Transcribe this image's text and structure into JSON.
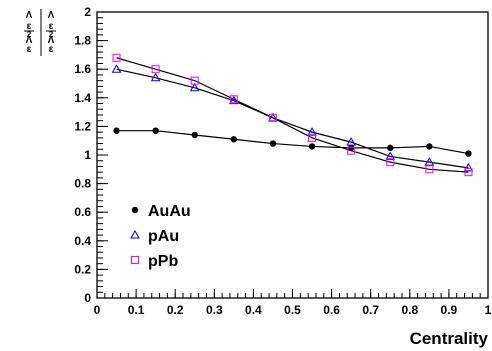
{
  "chart_data": {
    "type": "scatter",
    "title": "",
    "xlabel": "Centrality",
    "ylabel": {
      "numerator_lines": [
        "Λ",
        "ε",
        "2"
      ],
      "denominator_lines": [
        "Λ",
        "ε",
        "2"
      ]
    },
    "xlim": [
      0,
      1
    ],
    "ylim": [
      0,
      2
    ],
    "x_ticks": [
      0,
      0.1,
      0.2,
      0.3,
      0.4,
      0.5,
      0.6,
      0.7,
      0.8,
      0.9,
      1
    ],
    "x_tick_labels": [
      "0",
      "0.1",
      "0.2",
      "0.3",
      "0.4",
      "0.5",
      "0.6",
      "0.7",
      "0.8",
      "0.9",
      "1"
    ],
    "y_ticks": [
      0,
      0.2,
      0.4,
      0.6,
      0.8,
      1,
      1.2,
      1.4,
      1.6,
      1.8,
      2
    ],
    "y_tick_labels": [
      "0",
      "0.2",
      "0.4",
      "0.6",
      "0.8",
      "1",
      "1.2",
      "1.4",
      "1.6",
      "1.8",
      "2"
    ],
    "grid": false,
    "legend_position": "bottom-left",
    "x": [
      0.05,
      0.15,
      0.25,
      0.35,
      0.45,
      0.55,
      0.65,
      0.75,
      0.85,
      0.95
    ],
    "series": [
      {
        "name": "AuAu",
        "marker": "filled-circle",
        "color": "#000000",
        "values": [
          1.17,
          1.17,
          1.14,
          1.11,
          1.08,
          1.06,
          1.05,
          1.05,
          1.06,
          1.01
        ]
      },
      {
        "name": "pAu",
        "marker": "open-triangle",
        "color": "#0000ff",
        "values": [
          1.6,
          1.54,
          1.47,
          1.38,
          1.26,
          1.16,
          1.09,
          0.99,
          0.95,
          0.91
        ]
      },
      {
        "name": "pPb",
        "marker": "open-square",
        "color": "#ff00ff",
        "values": [
          1.68,
          1.6,
          1.52,
          1.39,
          1.26,
          1.12,
          1.03,
          0.95,
          0.9,
          0.88
        ]
      }
    ]
  }
}
